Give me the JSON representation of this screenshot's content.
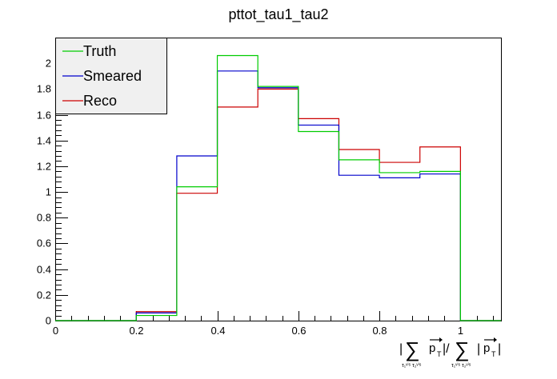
{
  "chart_data": {
    "type": "histogram",
    "title": "pttot_tau1_tau2",
    "xlabel": "| ∑ p_T | / ∑ |p_T|",
    "xlabel_parts": {
      "open_bar": "|",
      "sum1": "∑",
      "sub1": "τ₁ᵛⁱˢ τ₂ᵛⁱˢ",
      "p1": "p",
      "t1": "T",
      "mid": "|/",
      "sum2": "∑",
      "sub2": "τ₁ᵛⁱˢ τ₂ᵛⁱˢ",
      "open2": "|",
      "p2": "p",
      "t2": "T",
      "close2": "|"
    },
    "xlim": [
      0,
      1.1
    ],
    "ylim": [
      0,
      2.2
    ],
    "x_ticks": [
      0,
      0.2,
      0.4,
      0.6,
      0.8,
      1
    ],
    "x_tick_labels": [
      "0",
      "0.2",
      "0.4",
      "0.6",
      "0.8",
      "1"
    ],
    "y_ticks": [
      0,
      0.2,
      0.4,
      0.6,
      0.8,
      1,
      1.2,
      1.4,
      1.6,
      1.8,
      2
    ],
    "y_tick_labels": [
      "0",
      "0.2",
      "0.4",
      "0.6",
      "0.8",
      "1",
      "1.2",
      "1.4",
      "1.6",
      "1.8",
      "2"
    ],
    "bin_edges": [
      0,
      0.1,
      0.2,
      0.3,
      0.4,
      0.5,
      0.6,
      0.7,
      0.8,
      0.9,
      1.0,
      1.1
    ],
    "legend_position": "top-left",
    "series": [
      {
        "name": "Truth",
        "color": "#00cc00",
        "values": [
          0,
          0,
          0.04,
          1.04,
          2.06,
          1.82,
          1.47,
          1.25,
          1.15,
          1.16,
          0,
          0
        ]
      },
      {
        "name": "Smeared",
        "color": "#0000cc",
        "values": [
          0,
          0,
          0.06,
          1.28,
          1.94,
          1.81,
          1.52,
          1.13,
          1.11,
          1.14,
          0,
          0
        ]
      },
      {
        "name": "Reco",
        "color": "#cc0000",
        "values": [
          0,
          0,
          0.07,
          0.99,
          1.66,
          1.8,
          1.57,
          1.33,
          1.23,
          1.35,
          0,
          0
        ]
      }
    ]
  }
}
